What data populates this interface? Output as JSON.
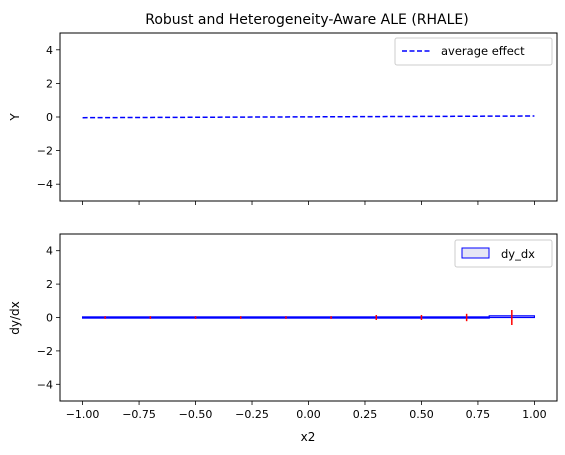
{
  "chart_data": [
    {
      "type": "line",
      "title": "Robust and Heterogeneity-Aware ALE (RHALE)",
      "xlabel": "",
      "ylabel": "Y",
      "xlim": [
        -1.1,
        1.1
      ],
      "ylim": [
        -5,
        5
      ],
      "x_ticks": [
        -1.0,
        -0.75,
        -0.5,
        -0.25,
        0.0,
        0.25,
        0.5,
        0.75,
        1.0
      ],
      "y_ticks": [
        -4,
        -2,
        0,
        2,
        4
      ],
      "x_tick_labels_shown": false,
      "grid": false,
      "legend_position": "top-right",
      "series": [
        {
          "name": "average effect",
          "color": "#0000ff",
          "line_style": "dashed",
          "x": [
            -1.0,
            1.0
          ],
          "y": [
            -0.04,
            0.06
          ]
        }
      ]
    },
    {
      "type": "bar",
      "title": "",
      "xlabel": "x2",
      "ylabel": "dy/dx",
      "xlim": [
        -1.1,
        1.1
      ],
      "ylim": [
        -5,
        5
      ],
      "x_ticks": [
        -1.0,
        -0.75,
        -0.5,
        -0.25,
        0.0,
        0.25,
        0.5,
        0.75,
        1.0
      ],
      "x_tick_labels": [
        "−1.00",
        "−0.75",
        "−0.50",
        "−0.25",
        "0.00",
        "0.25",
        "0.50",
        "0.75",
        "1.00"
      ],
      "y_ticks": [
        -4,
        -2,
        0,
        2,
        4
      ],
      "grid": false,
      "legend_position": "top-right",
      "series_name": "dy_dx",
      "bar_edge_color": "#0000ff",
      "bar_fill_color": "#e6e6f5",
      "error_color": "#ff0000",
      "bins": [
        {
          "x0": -1.0,
          "x1": 0.8,
          "value": 0.0
        },
        {
          "x0": 0.8,
          "x1": 1.0,
          "value": 0.1
        }
      ],
      "error_bars": [
        {
          "x": -0.9,
          "y": 0.0,
          "err": 0.08
        },
        {
          "x": -0.7,
          "y": 0.0,
          "err": 0.08
        },
        {
          "x": -0.5,
          "y": 0.0,
          "err": 0.08
        },
        {
          "x": -0.3,
          "y": 0.0,
          "err": 0.08
        },
        {
          "x": -0.1,
          "y": 0.0,
          "err": 0.08
        },
        {
          "x": 0.1,
          "y": 0.0,
          "err": 0.08
        },
        {
          "x": 0.3,
          "y": 0.0,
          "err": 0.15
        },
        {
          "x": 0.5,
          "y": 0.0,
          "err": 0.15
        },
        {
          "x": 0.7,
          "y": 0.0,
          "err": 0.22
        },
        {
          "x": 0.9,
          "y": 0.0,
          "err": 0.45
        }
      ]
    }
  ]
}
